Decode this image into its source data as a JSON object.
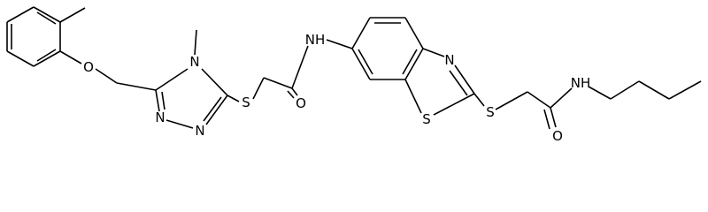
{
  "atoms": [
    {
      "label": "O"
    },
    {
      "label": "N"
    },
    {
      "label": "N"
    },
    {
      "label": "N"
    },
    {
      "label": "S"
    },
    {
      "label": "O"
    },
    {
      "label": "NH"
    },
    {
      "label": "N"
    },
    {
      "label": "S"
    },
    {
      "label": "S"
    },
    {
      "label": "O"
    },
    {
      "label": "NH"
    }
  ]
}
